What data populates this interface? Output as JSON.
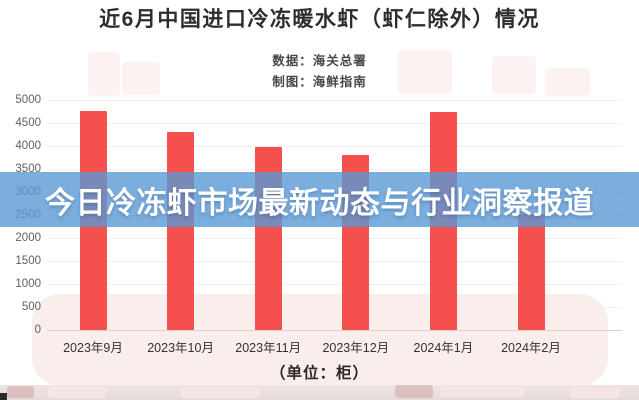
{
  "title": "近6月中国进口冷冻暖水虾（虾仁除外）情况",
  "source": {
    "data_line": "数据：海关总署",
    "credit_line": "制图：海鲜指南"
  },
  "banner": {
    "text": "今日冷冻虾市场最新动态与行业洞察报道",
    "color": "#5a99d4"
  },
  "chart_data": {
    "type": "bar",
    "title": "近6月中国进口冷冻暖水虾（虾仁除外）情况",
    "categories": [
      "2023年9月",
      "2023年10月",
      "2023年11月",
      "2023年12月",
      "2024年1月",
      "2024年2月"
    ],
    "values": [
      4770,
      4310,
      3980,
      3800,
      4750,
      2530
    ],
    "xlabel": "（单位：柜）",
    "ylabel": "",
    "ylim": [
      0,
      5000
    ],
    "yticks": [
      0,
      500,
      1000,
      1500,
      2000,
      2500,
      3000,
      3500,
      4000,
      4500,
      5000
    ],
    "bar_color": "#f5504e",
    "grid": true,
    "legend": false
  }
}
